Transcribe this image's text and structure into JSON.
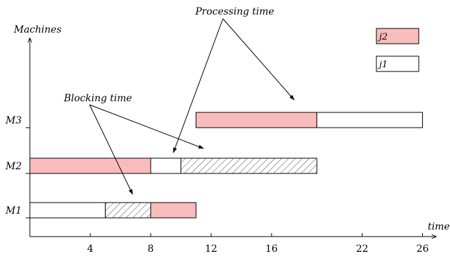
{
  "chart_data": {
    "type": "gantt",
    "y_axis_label": "Machines",
    "x_axis_label": "time",
    "machines": [
      "M1",
      "M2",
      "M3"
    ],
    "x_ticks": [
      4,
      8,
      12,
      16,
      22,
      26
    ],
    "x_range": [
      0,
      27
    ],
    "legend": [
      {
        "label": "j2",
        "color": "#f9bcbc"
      },
      {
        "label": "j1",
        "color": "#ffffff"
      }
    ],
    "tasks": [
      {
        "machine": "M1",
        "job": "j1",
        "kind": "processing",
        "start": 0,
        "end": 5
      },
      {
        "machine": "M1",
        "job": "j1",
        "kind": "blocking",
        "start": 5,
        "end": 8
      },
      {
        "machine": "M1",
        "job": "j2",
        "kind": "processing",
        "start": 8,
        "end": 11
      },
      {
        "machine": "M2",
        "job": "j2",
        "kind": "processing",
        "start": 0,
        "end": 8
      },
      {
        "machine": "M2",
        "job": "j1",
        "kind": "processing",
        "start": 8,
        "end": 10
      },
      {
        "machine": "M2",
        "job": "j1",
        "kind": "blocking",
        "start": 10,
        "end": 19
      },
      {
        "machine": "M3",
        "job": "j2",
        "kind": "processing",
        "start": 11,
        "end": 19
      },
      {
        "machine": "M3",
        "job": "j1",
        "kind": "processing",
        "start": 19,
        "end": 26
      }
    ],
    "annotations": [
      {
        "text": "Processing time",
        "targets": [
          {
            "machine": "M2",
            "time": 9.5
          },
          {
            "machine": "M3",
            "time": 17.5
          }
        ]
      },
      {
        "text": "Blocking time",
        "targets": [
          {
            "machine": "M1",
            "time": 6.8
          },
          {
            "machine": "M2",
            "time": 11.5
          }
        ]
      }
    ],
    "colors": {
      "j2": "#f9bcbc",
      "j1": "#ffffff",
      "hatch": "#555555"
    }
  }
}
